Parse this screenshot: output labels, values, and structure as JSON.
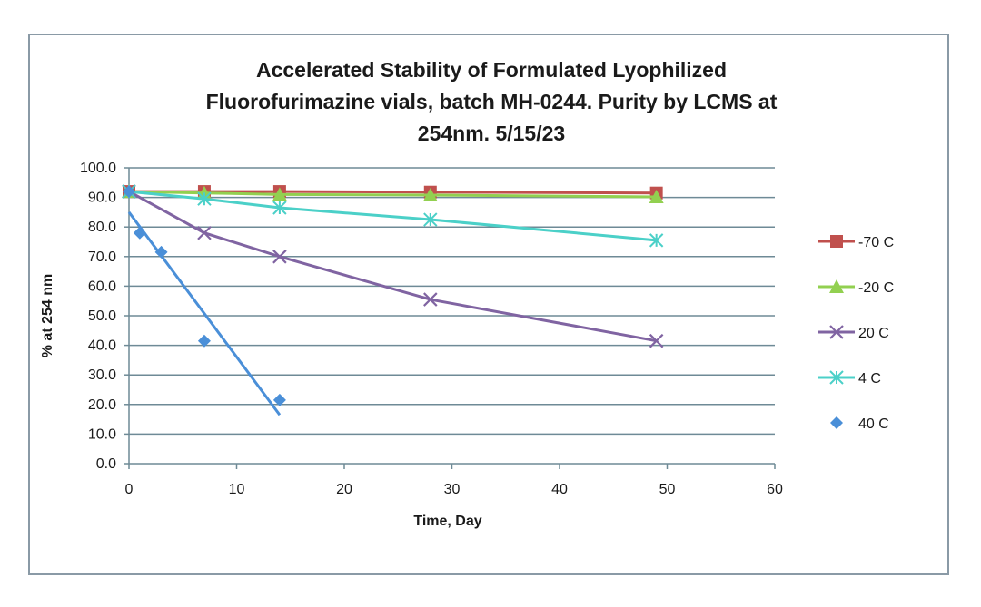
{
  "chart_data": {
    "type": "scatter",
    "title_lines": [
      "Accelerated Stability of Formulated Lyophilized",
      "Fluorofurimazine vials, batch MH-0244.  Purity by LCMS at",
      "254nm. 5/15/23"
    ],
    "xlabel": "Time, Day",
    "ylabel": "% at 254 nm",
    "xlim": [
      0,
      60
    ],
    "ylim": [
      0,
      100
    ],
    "x_ticks": [
      "0",
      "10",
      "20",
      "30",
      "40",
      "50",
      "60"
    ],
    "y_ticks": [
      "0.0",
      "10.0",
      "20.0",
      "30.0",
      "40.0",
      "50.0",
      "60.0",
      "70.0",
      "80.0",
      "90.0",
      "100.0"
    ],
    "grid": "horizontal",
    "legend_position": "right",
    "series": [
      {
        "name": "-70 C",
        "color": "#c0504d",
        "marker": "square",
        "line": true,
        "x": [
          0,
          7,
          14,
          28,
          49
        ],
        "y": [
          92.0,
          92.0,
          92.0,
          91.8,
          91.5
        ]
      },
      {
        "name": "-20 C",
        "color": "#92d050",
        "marker": "triangle",
        "line": true,
        "x": [
          0,
          7,
          14,
          28,
          49
        ],
        "y": [
          92.0,
          91.5,
          91.0,
          90.8,
          90.2
        ]
      },
      {
        "name": "20 C",
        "color": "#8064a2",
        "marker": "x",
        "line": true,
        "x": [
          0,
          7,
          14,
          28,
          49
        ],
        "y": [
          92.0,
          78.0,
          70.0,
          55.5,
          41.5
        ]
      },
      {
        "name": "4 C",
        "color": "#4bd0c8",
        "marker": "asterisk",
        "line": true,
        "x": [
          0,
          7,
          14,
          28,
          49
        ],
        "y": [
          92.0,
          89.5,
          86.5,
          82.5,
          75.5
        ]
      },
      {
        "name": "40 C",
        "color": "#4a8fd8",
        "marker": "diamond",
        "line": false,
        "x": [
          0,
          1,
          3,
          7,
          14
        ],
        "y": [
          92.0,
          78.0,
          71.5,
          41.5,
          21.5
        ],
        "trendline": {
          "x": [
            0,
            14
          ],
          "y": [
            85.0,
            16.5
          ]
        }
      }
    ]
  }
}
